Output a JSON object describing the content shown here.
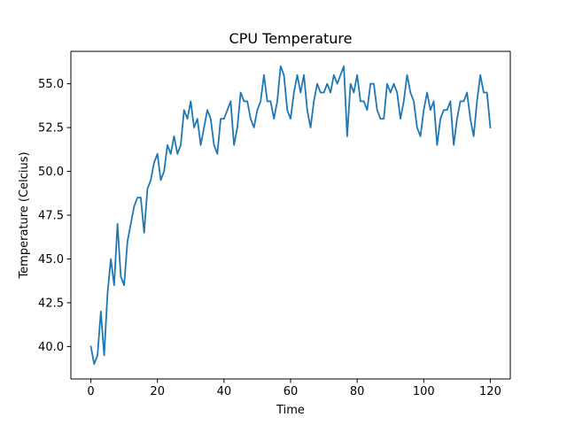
{
  "chart_data": {
    "type": "line",
    "title": "CPU Temperature",
    "xlabel": "Time",
    "ylabel": "Temperature (Celcius)",
    "xlim": [
      -6,
      126
    ],
    "ylim": [
      38.15,
      56.85
    ],
    "xticks": [
      0,
      20,
      40,
      60,
      80,
      100,
      120
    ],
    "yticks": [
      40.0,
      42.5,
      45.0,
      47.5,
      50.0,
      52.5,
      55.0
    ],
    "xtick_labels": [
      "0",
      "20",
      "40",
      "60",
      "80",
      "100",
      "120"
    ],
    "ytick_labels": [
      "40.0",
      "42.5",
      "45.0",
      "47.5",
      "50.0",
      "52.5",
      "55.0"
    ],
    "grid": false,
    "legend": false,
    "series": [
      {
        "color": "#1f77b4",
        "x": [
          0,
          1,
          2,
          3,
          4,
          5,
          6,
          7,
          8,
          9,
          10,
          11,
          12,
          13,
          14,
          15,
          16,
          17,
          18,
          19,
          20,
          21,
          22,
          23,
          24,
          25,
          26,
          27,
          28,
          29,
          30,
          31,
          32,
          33,
          34,
          35,
          36,
          37,
          38,
          39,
          40,
          41,
          42,
          43,
          44,
          45,
          46,
          47,
          48,
          49,
          50,
          51,
          52,
          53,
          54,
          55,
          56,
          57,
          58,
          59,
          60,
          61,
          62,
          63,
          64,
          65,
          66,
          67,
          68,
          69,
          70,
          71,
          72,
          73,
          74,
          75,
          76,
          77,
          78,
          79,
          80,
          81,
          82,
          83,
          84,
          85,
          86,
          87,
          88,
          89,
          90,
          91,
          92,
          93,
          94,
          95,
          96,
          97,
          98,
          99,
          100,
          101,
          102,
          103,
          104,
          105,
          106,
          107,
          108,
          109,
          110,
          111,
          112,
          113,
          114,
          115,
          116,
          117,
          118,
          119,
          120
        ],
        "y": [
          40.0,
          39.0,
          39.5,
          42.0,
          39.5,
          43.0,
          45.0,
          43.5,
          47.0,
          44.0,
          43.5,
          46.0,
          47.0,
          48.0,
          48.5,
          48.5,
          46.5,
          49.0,
          49.5,
          50.5,
          51.0,
          49.5,
          50.0,
          51.5,
          51.0,
          52.0,
          51.0,
          51.5,
          53.5,
          53.0,
          54.0,
          52.5,
          53.0,
          51.5,
          52.5,
          53.5,
          53.0,
          51.5,
          51.0,
          53.0,
          53.0,
          53.5,
          54.0,
          51.5,
          52.5,
          54.5,
          54.0,
          54.0,
          53.0,
          52.5,
          53.5,
          54.0,
          55.5,
          54.0,
          54.0,
          53.0,
          54.0,
          56.0,
          55.5,
          53.5,
          53.0,
          54.5,
          55.5,
          54.5,
          55.5,
          53.5,
          52.5,
          54.0,
          55.0,
          54.5,
          54.5,
          55.0,
          54.5,
          55.5,
          55.0,
          55.5,
          56.0,
          52.0,
          55.0,
          54.5,
          55.5,
          54.0,
          54.0,
          53.5,
          55.0,
          55.0,
          53.5,
          53.0,
          53.0,
          55.0,
          54.5,
          55.0,
          54.5,
          53.0,
          54.0,
          55.5,
          54.5,
          54.0,
          52.5,
          52.0,
          53.5,
          54.5,
          53.5,
          54.0,
          51.5,
          53.0,
          53.5,
          53.5,
          54.0,
          51.5,
          53.0,
          54.0,
          54.0,
          54.5,
          53.0,
          52.0,
          54.0,
          55.5,
          54.5,
          54.5,
          52.5
        ]
      }
    ]
  }
}
